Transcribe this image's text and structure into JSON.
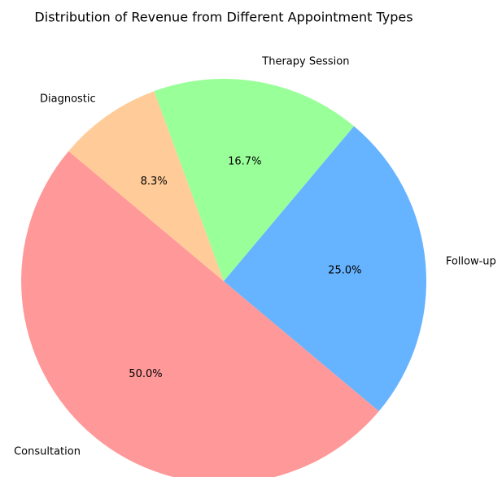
{
  "chart_data": {
    "type": "pie",
    "title": "Distribution of Revenue from Different Appointment Types",
    "categories": [
      "Consultation",
      "Follow-up",
      "Therapy Session",
      "Diagnostic"
    ],
    "values": [
      50.0,
      25.0,
      16.7,
      8.3
    ],
    "value_labels": [
      "50.0%",
      "25.0%",
      "16.7%",
      "8.3%"
    ],
    "colors": [
      "#ff9999",
      "#66b3ff",
      "#99ff99",
      "#ffcc99"
    ],
    "start_angle": 140
  }
}
